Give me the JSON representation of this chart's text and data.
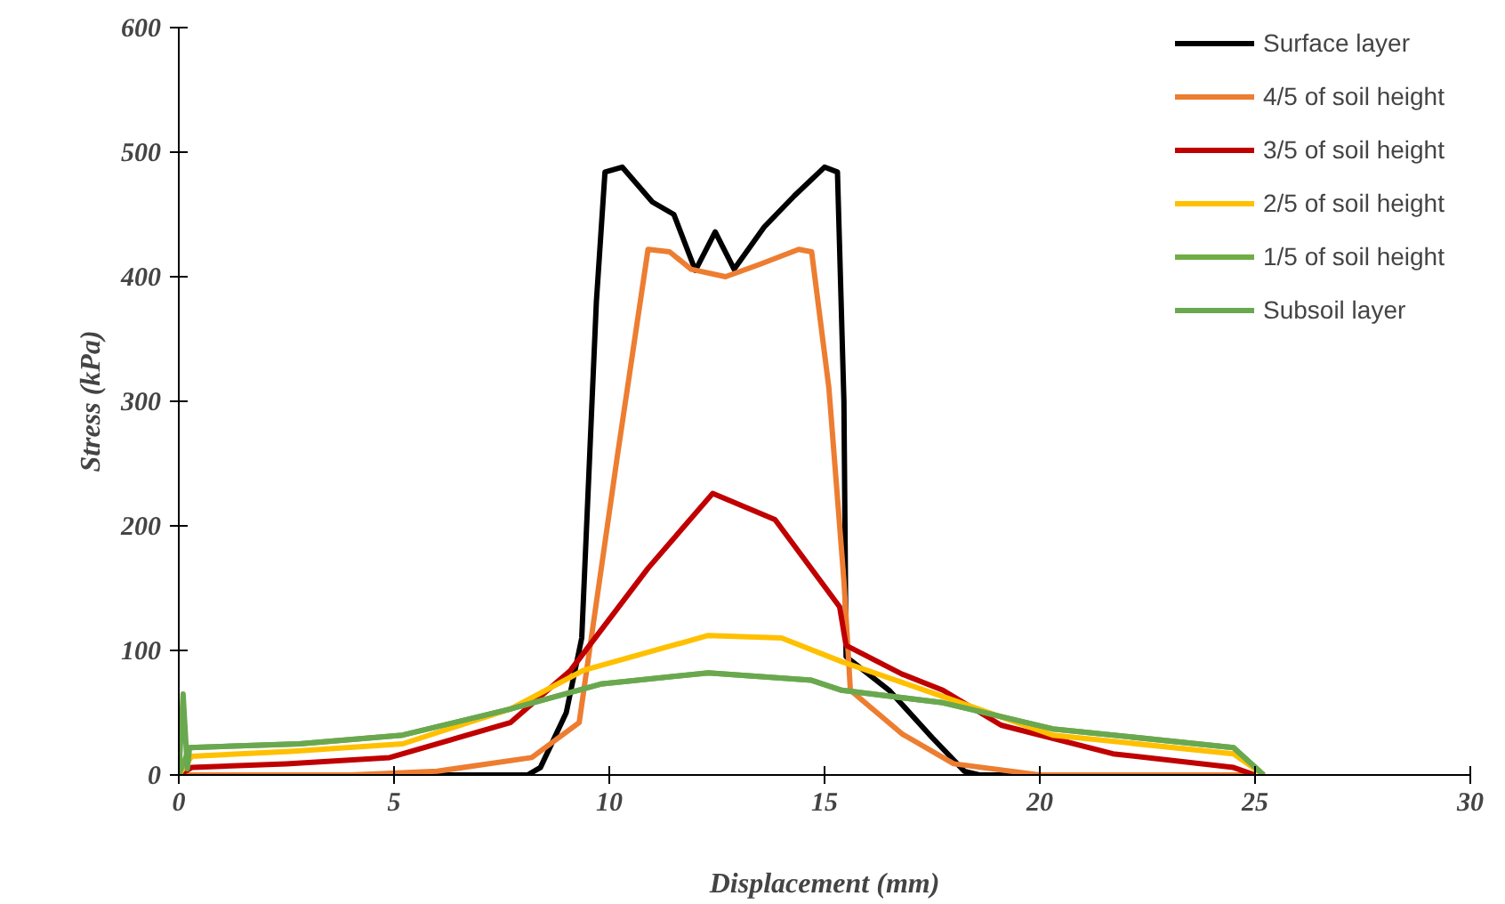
{
  "chart_data": {
    "type": "line",
    "xlabel": "Displacement (mm)",
    "ylabel": "Stress (kPa)",
    "xlim": [
      0,
      30
    ],
    "ylim": [
      0,
      600
    ],
    "xticks": [
      0,
      5,
      10,
      15,
      20,
      25,
      30
    ],
    "yticks": [
      0,
      100,
      200,
      300,
      400,
      500,
      600
    ],
    "grid": false,
    "legend": "right",
    "marker": "none",
    "line_style": "solid",
    "series": [
      {
        "name": "Surface layer",
        "color": "#000000",
        "x": [
          0,
          8.1,
          8.4,
          9.0,
          9.36,
          9.7,
          9.9,
          10.3,
          11.0,
          11.5,
          12.0,
          12.46,
          12.9,
          13.6,
          14.3,
          15.0,
          15.3,
          15.45,
          15.5,
          16.5,
          17.5,
          18.25,
          18.6,
          25
        ],
        "values": [
          0,
          0,
          6,
          50,
          110,
          380,
          484,
          488,
          460,
          450,
          405,
          436,
          406,
          440,
          465,
          488,
          484,
          300,
          95,
          68,
          30,
          3,
          0,
          0
        ]
      },
      {
        "name": "4/5 of soil height",
        "color": "#ed7d31",
        "x": [
          0,
          4,
          6,
          8.2,
          9.3,
          10.2,
          10.9,
          11.4,
          11.9,
          12.7,
          13.5,
          14.4,
          14.7,
          15.1,
          15.45,
          15.6,
          16.8,
          18,
          20,
          25
        ],
        "values": [
          0,
          0,
          3,
          14,
          42,
          259,
          422,
          420,
          406,
          400,
          410,
          422,
          420,
          311,
          156,
          68,
          33,
          9,
          0,
          0
        ]
      },
      {
        "name": "3/5 of soil height",
        "color": "#c00000",
        "x": [
          0,
          0.3,
          2.5,
          4.9,
          7.7,
          9.1,
          10.9,
          12.4,
          13.85,
          15.35,
          15.5,
          16.8,
          17.75,
          19.1,
          21.7,
          24.5,
          25
        ],
        "values": [
          0,
          6,
          9,
          14,
          42,
          84,
          166,
          226,
          205,
          135,
          104,
          81,
          68,
          40,
          17,
          6,
          0
        ]
      },
      {
        "name": "2/5 of soil height",
        "color": "#ffc000",
        "x": [
          0,
          0.3,
          2.6,
          5.2,
          7.7,
          9.4,
          12.3,
          14.0,
          15.4,
          17.75,
          20.3,
          24.5,
          25.2
        ],
        "values": [
          0,
          15,
          19,
          25,
          53,
          84,
          112,
          110,
          91,
          63,
          32,
          17,
          0
        ]
      },
      {
        "name": "1/5 of soil height",
        "color": "#70ad47",
        "x": [
          0,
          0.25,
          2.8,
          5.2,
          7.7,
          9.8,
          12.3,
          14.7,
          15.4,
          17.75,
          20.3,
          24.5,
          25.2
        ],
        "values": [
          0,
          22,
          25,
          32,
          53,
          73,
          82,
          76,
          68,
          58,
          37,
          22,
          0
        ]
      },
      {
        "name": "Subsoil layer",
        "color": "#6aa84f",
        "x": [
          0,
          0.1,
          0.2,
          0.25,
          2.8,
          5.2,
          7.7,
          9.8,
          12.3,
          14.7,
          15.4,
          17.75,
          20.3,
          24.5,
          25.2
        ],
        "values": [
          0,
          65,
          5,
          22,
          25,
          32,
          53,
          73,
          82,
          76,
          68,
          58,
          37,
          22,
          0
        ]
      }
    ]
  }
}
